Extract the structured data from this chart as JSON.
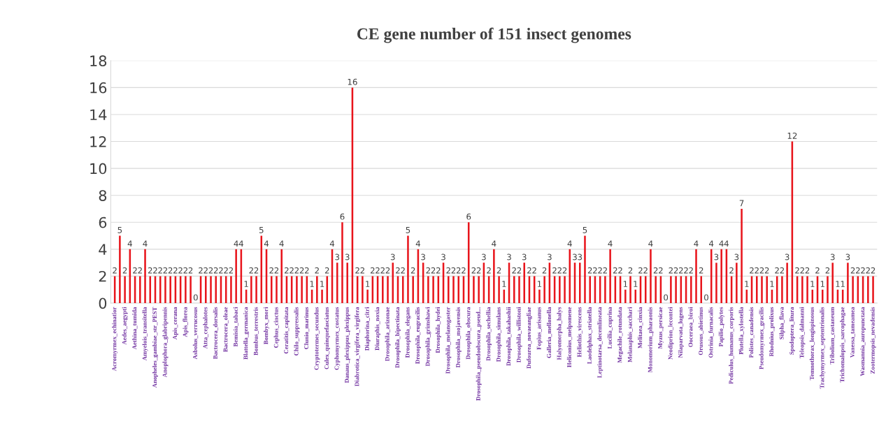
{
  "chart_data": {
    "type": "bar",
    "title": "CE gene number of 151 insect genomes",
    "categories": [
      "Acromyrmex_echinatior",
      null,
      "Aedes_aegypti",
      null,
      "Aethina_tumida",
      null,
      "Amyelois_transitella",
      null,
      "Anopheles_gambiae_str_PEST",
      null,
      "Anoplophora_glabripennis",
      null,
      "Apis_cerana",
      null,
      "Apis_florea",
      null,
      "Asbolus_verrucosus",
      null,
      "Atta_cephalotes",
      null,
      "Bactrocera_dorsalis",
      null,
      "Bactrocera_oleae",
      null,
      "Bemisia_tabaci",
      null,
      "Blattella_germanica",
      null,
      "Bombus_terrestris",
      null,
      "Bombyx_mori",
      null,
      "Cephus_cinctus",
      null,
      "Ceratitis_capitata",
      null,
      "Chilo_suppressalis",
      null,
      "Clunio_marinus",
      null,
      "Cryptotermes_secundus",
      null,
      "Culex_quinquefasciatus",
      null,
      "Cyphomyrmex_costatus",
      null,
      "Danaus_plexippus_plexippus",
      null,
      "Diabrotica_virgifera_virgifera",
      null,
      "Diaphorina_citri",
      null,
      "Diuraphis_noxia",
      null,
      "Drosophila_arizonae",
      null,
      "Drosophila_bipectinata",
      null,
      "Drosophila_elegans",
      null,
      "Drosophila_eugracilis",
      null,
      "Drosophila_grimshawi",
      null,
      "Drosophila_hydei",
      null,
      "Drosophila_melanogaster",
      null,
      "Drosophila_mojavensis",
      null,
      "Drosophila_obscura",
      null,
      "Drosophila_pseudoobscura_pseud...",
      null,
      "Drosophila_sechellia",
      null,
      "Drosophila_simulans",
      null,
      "Drosophila_takahashii",
      null,
      "Drosophila_willistoni",
      null,
      "Dufourea_novaeangliae",
      null,
      "Fopius_arisanus",
      null,
      "Galleria_mellonella",
      null,
      "Halyomorpha_halys",
      null,
      "Heliconius_melpomene",
      null,
      "Heliothis_virescens",
      null,
      "Laodelphax_striatella",
      null,
      "Leptinotarsa_decemlineata",
      null,
      "Lucilia_cuprina",
      null,
      "Megachile_rotundata",
      null,
      "Melanaphis_sacchari",
      null,
      "Melitaea_cinxia",
      null,
      "Monomorium_pharaonis",
      null,
      "Myzus_persicae",
      null,
      "Neodiprion_lecontei",
      null,
      "Nilaparvata_lugens",
      null,
      "Ooceraea_biroi",
      null,
      "Orussus_abietinus",
      null,
      "Ostrinia_furnacalis",
      null,
      "Papilio_polytes",
      null,
      "Pediculus_humanus_corporis",
      null,
      "Plutella_xylostella",
      null,
      "Polistes_canadensis",
      null,
      "Pseudomyrmex_gracilis",
      null,
      "Rhodnius_prolixus",
      null,
      "Silpha_flava",
      null,
      "Spodoptera_litura",
      null,
      "Teleopsis_dalmanni",
      null,
      "Temnothorax_longispinosus",
      null,
      "Trachymyrmex_septentrionalis",
      null,
      "Tribolium_castaneum",
      null,
      "Trichomalopsis_sarcophagae",
      null,
      "Vanessa_tameamea",
      null,
      "Wasmannia_auropunctata",
      null,
      "Zootermopsis_nevadensis"
    ],
    "values": [
      2,
      5,
      2,
      4,
      2,
      2,
      4,
      2,
      2,
      2,
      2,
      2,
      2,
      2,
      2,
      2,
      0,
      2,
      2,
      2,
      2,
      2,
      2,
      2,
      4,
      4,
      1,
      2,
      2,
      5,
      4,
      2,
      2,
      4,
      2,
      2,
      2,
      2,
      2,
      1,
      2,
      1,
      2,
      4,
      3,
      6,
      3,
      16,
      2,
      2,
      1,
      2,
      2,
      2,
      2,
      3,
      2,
      2,
      5,
      2,
      4,
      3,
      2,
      2,
      2,
      3,
      2,
      2,
      2,
      2,
      6,
      2,
      2,
      3,
      2,
      4,
      2,
      1,
      3,
      2,
      2,
      3,
      2,
      2,
      1,
      2,
      3,
      2,
      2,
      2,
      4,
      3,
      3,
      5,
      2,
      2,
      2,
      2,
      4,
      2,
      2,
      1,
      2,
      1,
      2,
      2,
      4,
      2,
      2,
      0,
      2,
      2,
      2,
      2,
      2,
      4,
      2,
      0,
      4,
      3,
      4,
      4,
      2,
      3,
      7,
      1,
      2,
      2,
      2,
      2,
      1,
      2,
      2,
      3,
      12,
      2,
      2,
      2,
      1,
      2,
      1,
      2,
      3,
      1,
      1,
      3,
      2,
      2,
      2,
      2,
      2
    ],
    "color": "#e8141b",
    "ylim": [
      0,
      18
    ],
    "yticks": [
      0,
      2,
      4,
      6,
      8,
      10,
      12,
      14,
      16,
      18
    ],
    "grid": "y",
    "data_labels": true
  }
}
